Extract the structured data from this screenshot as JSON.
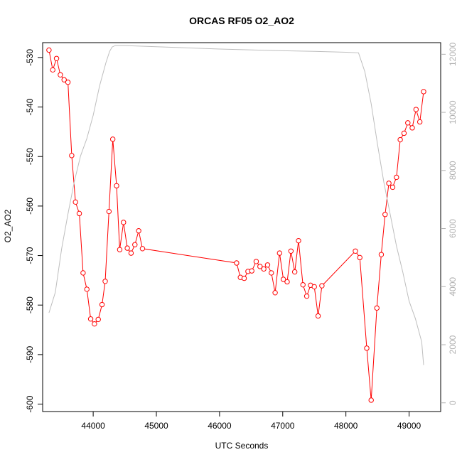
{
  "chart_data": {
    "type": "line",
    "title": "ORCAS RF05 O2_AO2",
    "xlabel": "UTC Seconds",
    "ylabel": "O2_AO2",
    "xlim": [
      43200,
      49500
    ],
    "ylim": [
      -601.5,
      -527
    ],
    "y2lim": [
      -300,
      12400
    ],
    "x_ticks": [
      44000,
      45000,
      46000,
      47000,
      48000,
      49000
    ],
    "y_ticks": [
      -600,
      -590,
      -580,
      -570,
      -560,
      -550,
      -540,
      -530
    ],
    "y2_ticks": [
      0,
      2000,
      4000,
      6000,
      8000,
      10000,
      12000
    ],
    "grid": false,
    "colors": {
      "o2": "#ff0000",
      "altitude": "#bebebe",
      "axis_right": "#b0b0b0"
    },
    "series": [
      {
        "role": "o2",
        "axis": "left",
        "style": "line+points",
        "x": [
          43300,
          43360,
          43420,
          43480,
          43540,
          43600,
          43660,
          43720,
          43780,
          43840,
          43900,
          43960,
          44020,
          44080,
          44140,
          44190,
          44250,
          44310,
          44370,
          44420,
          44480,
          44540,
          44600,
          44660,
          44720,
          44780,
          46270,
          46330,
          46390,
          46450,
          46510,
          46580,
          46640,
          46700,
          46760,
          46820,
          46880,
          46950,
          47010,
          47070,
          47130,
          47190,
          47250,
          47320,
          47380,
          47440,
          47500,
          47560,
          47620,
          48150,
          48220,
          48330,
          48400,
          48490,
          48560,
          48620,
          48680,
          48740,
          48800,
          48860,
          48920,
          48980,
          49050,
          49110,
          49170,
          49230
        ],
        "y": [
          -528.5,
          -532.5,
          -530.2,
          -533.5,
          -534.5,
          -535,
          -549.8,
          -559.2,
          -561.5,
          -573.5,
          -576.8,
          -582.8,
          -583.8,
          -582.9,
          -579.9,
          -575.2,
          -561.1,
          -546.5,
          -555.9,
          -568.8,
          -563.3,
          -568.5,
          -569.5,
          -567.8,
          -565,
          -568.6,
          -571.5,
          -574.4,
          -574.6,
          -573.2,
          -573.1,
          -571.2,
          -572.2,
          -572.7,
          -571.9,
          -573.5,
          -577.5,
          -569.5,
          -574.8,
          -575.3,
          -569.1,
          -573.3,
          -567,
          -575.9,
          -578.2,
          -576,
          -576.3,
          -582.2,
          -576.1,
          -569.1,
          -570.4,
          -588.7,
          -599.2,
          -580.6,
          -569.8,
          -561.7,
          -555.4,
          -556.2,
          -554.2,
          -546.6,
          -545.3,
          -543.2,
          -544.2,
          -540.5,
          -543,
          -536.9
        ]
      },
      {
        "role": "altitude",
        "axis": "right",
        "style": "line",
        "x": [
          43300,
          43400,
          43500,
          43600,
          43700,
          43800,
          43900,
          44000,
          44100,
          44200,
          44260,
          44300,
          44350,
          44400,
          44500,
          45000,
          46000,
          47000,
          47500,
          48000,
          48200,
          48300,
          48400,
          48500,
          48600,
          48700,
          48800,
          48900,
          49000,
          49100,
          49200,
          49230
        ],
        "y": [
          3100,
          3800,
          5300,
          6500,
          7600,
          8500,
          9100,
          9900,
          10900,
          11700,
          12100,
          12250,
          12300,
          12300,
          12300,
          12260,
          12180,
          12120,
          12100,
          12070,
          12050,
          11400,
          10300,
          8900,
          7600,
          6500,
          5400,
          4500,
          3500,
          2900,
          2100,
          1300
        ]
      }
    ]
  }
}
